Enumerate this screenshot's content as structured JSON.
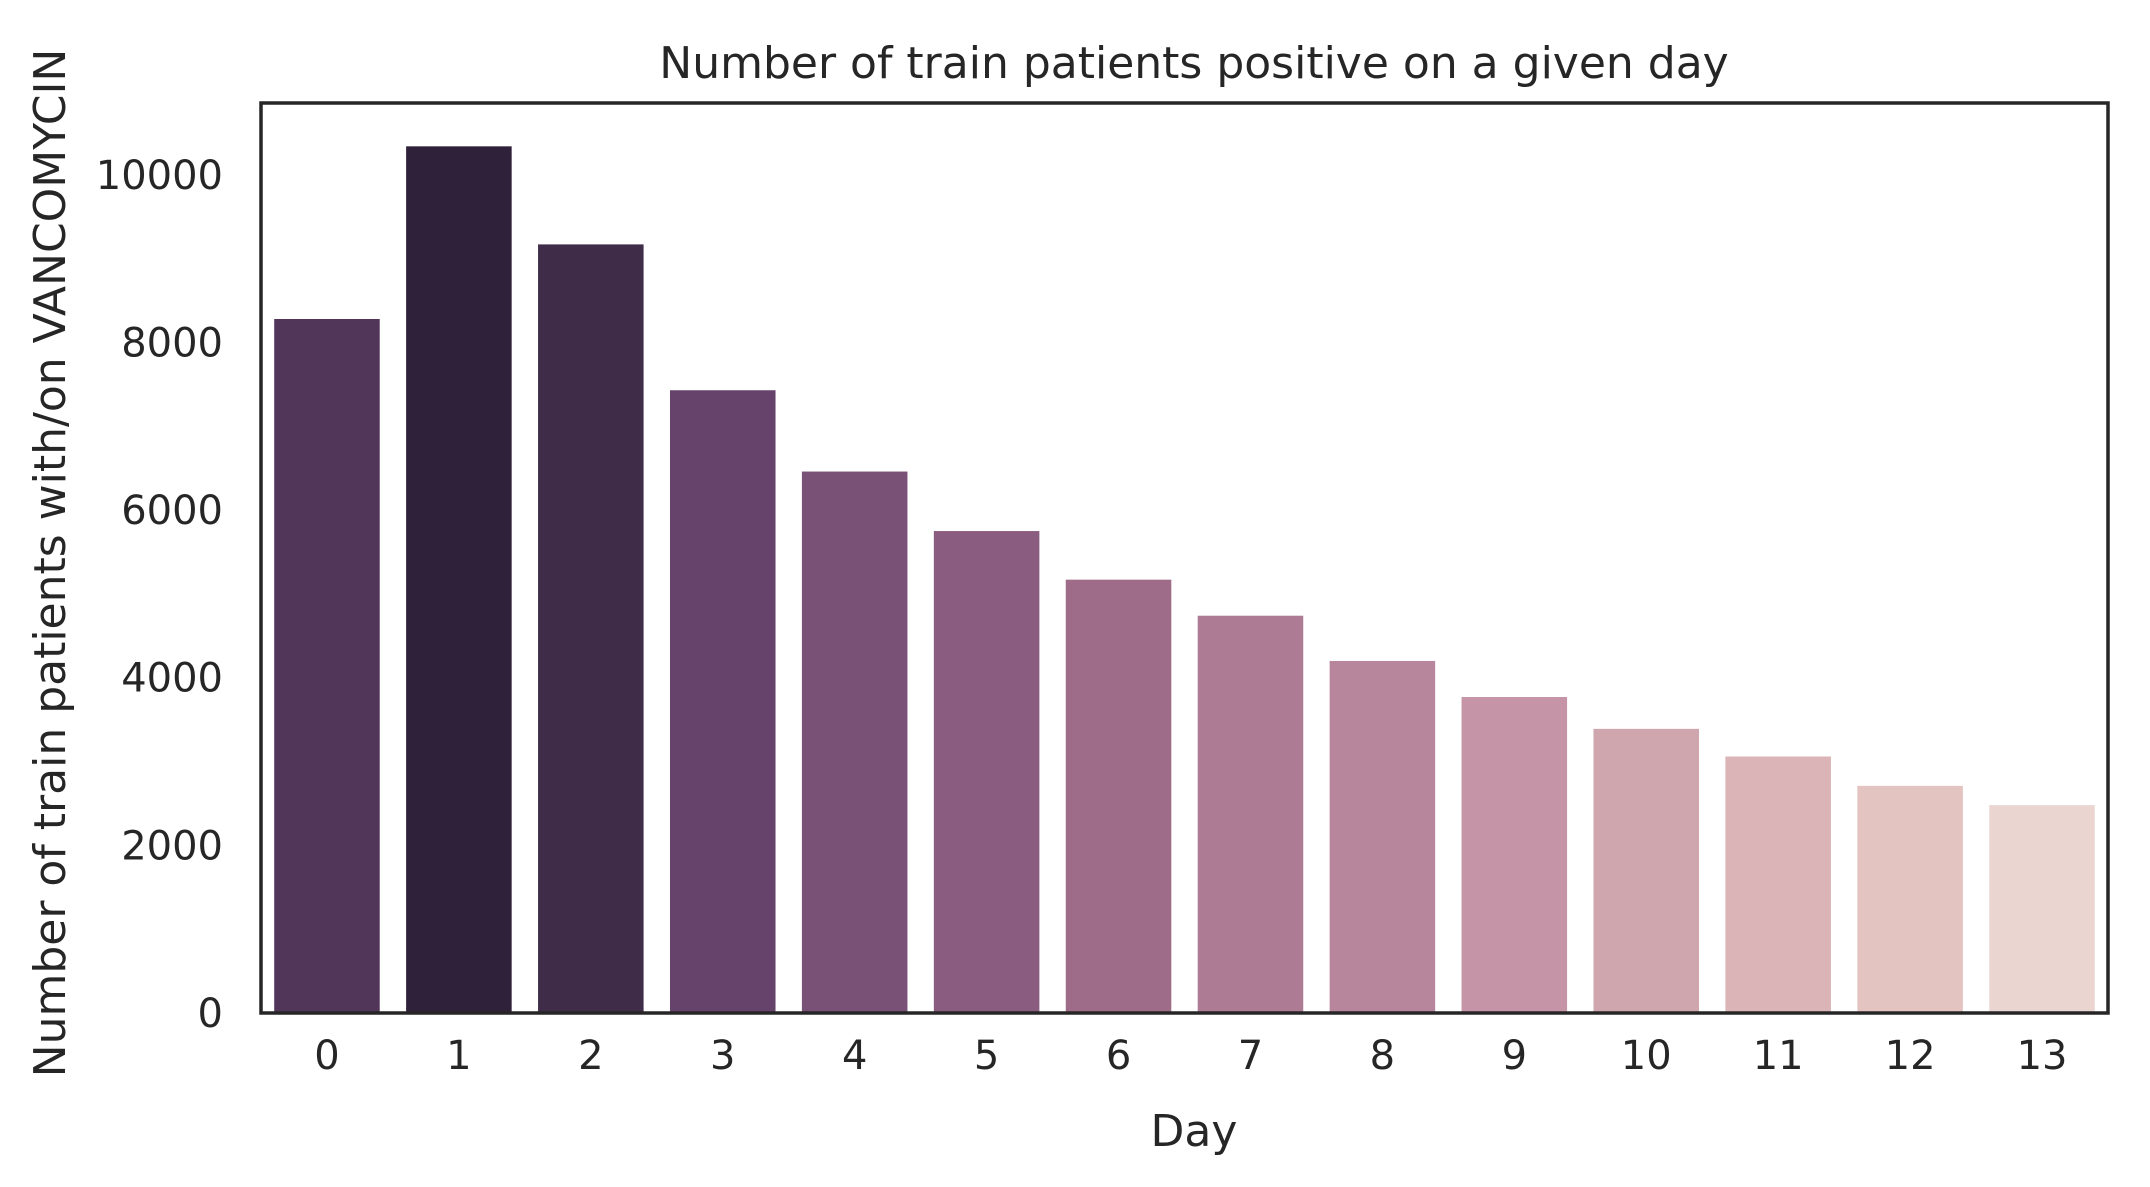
{
  "chart_data": {
    "type": "bar",
    "title": "Number of train patients positive on a given day",
    "xlabel": "Day",
    "ylabel": "Number of train patients with/on VANCOMYCIN",
    "categories": [
      "0",
      "1",
      "2",
      "3",
      "4",
      "5",
      "6",
      "7",
      "8",
      "9",
      "10",
      "11",
      "12",
      "13"
    ],
    "values": [
      8280,
      10340,
      9170,
      7430,
      6460,
      5750,
      5170,
      4740,
      4200,
      3770,
      3390,
      3060,
      2710,
      2480
    ],
    "colors": [
      "#51365a",
      "#2f2139",
      "#3f2c48",
      "#65436a",
      "#7a5176",
      "#8a5d80",
      "#9e6b88",
      "#ae7b94",
      "#b8869c",
      "#c595a7",
      "#d0a6ae",
      "#dab4b6",
      "#e3c4c1",
      "#ead5d0"
    ],
    "yticks": [
      0,
      2000,
      4000,
      6000,
      8000,
      10000
    ],
    "ylim": [
      0,
      10857
    ],
    "grid": false,
    "legend": null
  }
}
